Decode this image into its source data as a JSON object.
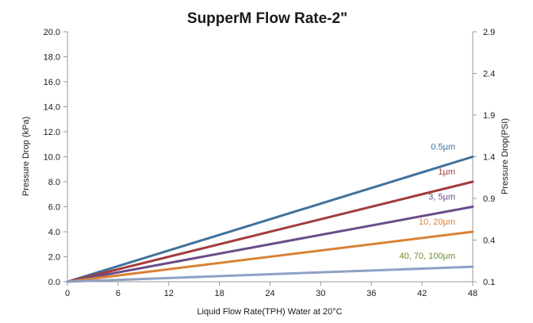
{
  "chart_data": {
    "type": "line",
    "title": "SupperM Flow Rate-2\"",
    "xlabel": "Liquid Flow Rate(TPH) Water at 20°C",
    "ylabel": "Pressure Drop (kPa)",
    "y2label": "Pressure Drop(PSI)",
    "xlim": [
      0,
      48
    ],
    "ylim": [
      0,
      20
    ],
    "x_ticks": [
      "0",
      "6",
      "12",
      "18",
      "24",
      "30",
      "36",
      "42",
      "48"
    ],
    "y_ticks": [
      "0.0",
      "2.0",
      "4.0",
      "6.0",
      "8.0",
      "10.0",
      "12.0",
      "14.0",
      "16.0",
      "18.0",
      "20.0"
    ],
    "y2_ticks": [
      "0.1",
      "0.4",
      "0.9",
      "1.4",
      "1.9",
      "2.4",
      "2.9"
    ],
    "grid": false,
    "series": [
      {
        "name": "0.5µm",
        "x": [
          0,
          48
        ],
        "y": [
          0,
          10.0
        ],
        "color": "#41719c"
      },
      {
        "name": "1µm",
        "x": [
          0,
          48
        ],
        "y": [
          0,
          8.0
        ],
        "color": "#a23c3c"
      },
      {
        "name": "3, 5µm",
        "x": [
          0,
          48
        ],
        "y": [
          0,
          6.0
        ],
        "color": "#6a4c8a"
      },
      {
        "name": "10, 20µm",
        "x": [
          0,
          48
        ],
        "y": [
          0,
          4.0
        ],
        "color": "#d98236"
      },
      {
        "name": "40, 70, 100µm",
        "x": [
          0,
          48
        ],
        "y": [
          0,
          1.2
        ],
        "color": "#8ea1c4"
      }
    ],
    "label_colors": [
      "#41719c",
      "#a23c3c",
      "#6a4c8a",
      "#d98236",
      "#6e8f3a"
    ]
  }
}
